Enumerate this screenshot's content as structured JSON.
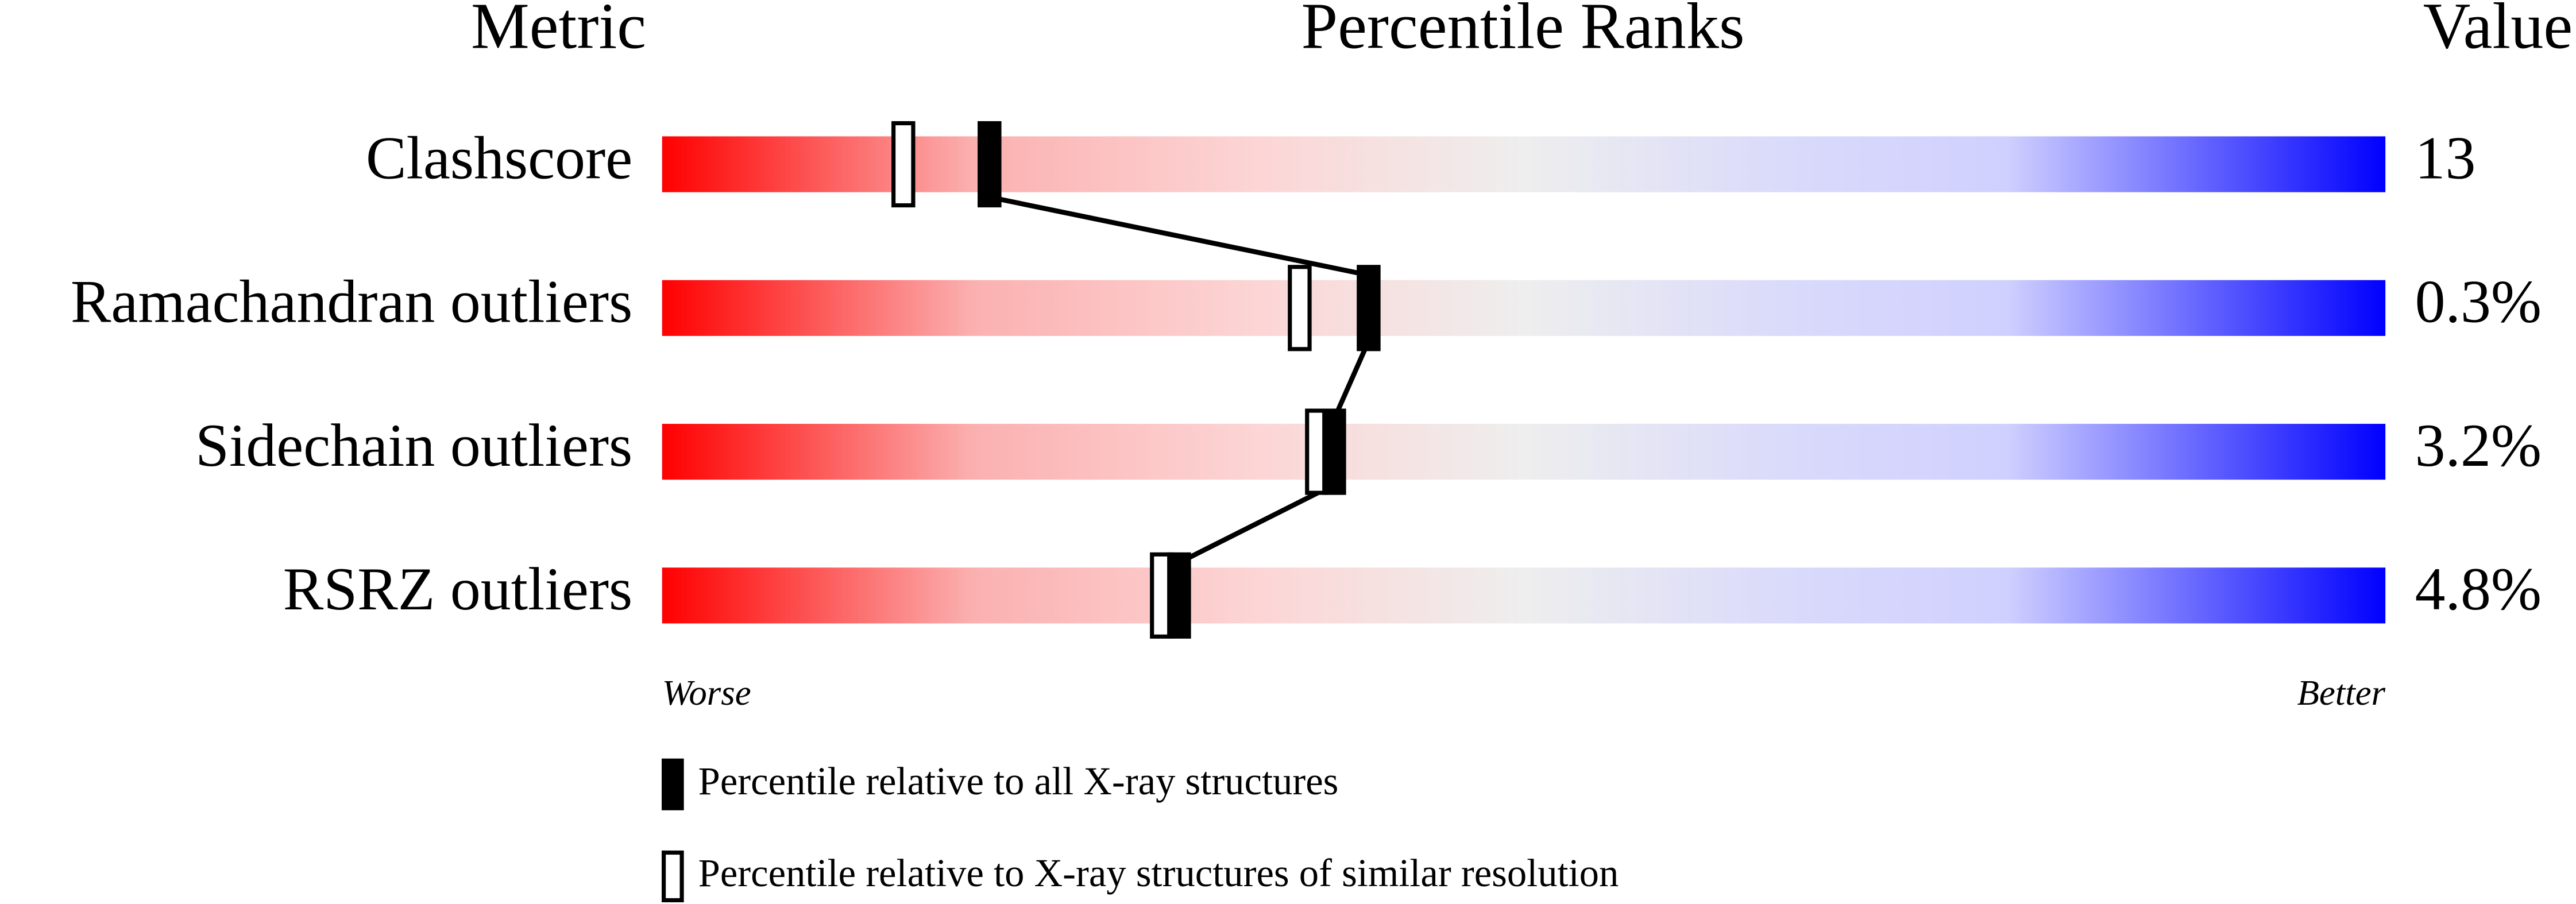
{
  "chart_data": {
    "type": "percentile_slider",
    "headers": [
      "Metric",
      "Percentile Ranks",
      "Value"
    ],
    "categories": [
      "Clashscore",
      "Ramachandran outliers",
      "Sidechain outliers",
      "RSRZ outliers"
    ],
    "value_column": [
      "13",
      "0.3%",
      "3.2%",
      "4.8%"
    ],
    "xlim": [
      0,
      100
    ],
    "x_axis_labels": [
      "Worse",
      "Better"
    ],
    "series": [
      {
        "name": "Percentile relative to all X-ray structures",
        "color": "#000000",
        "style": "filled",
        "values": [
          19,
          41,
          39,
          30
        ]
      },
      {
        "name": "Percentile relative to X-ray structures of similar resolution",
        "color": "#000000",
        "style": "open",
        "values": [
          14,
          37,
          38,
          29
        ]
      }
    ]
  }
}
